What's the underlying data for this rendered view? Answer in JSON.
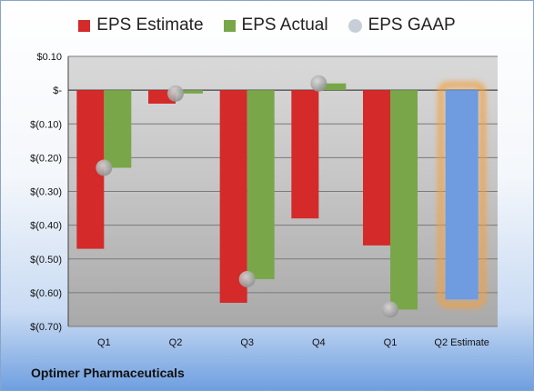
{
  "legend": {
    "estimate_label": "EPS Estimate",
    "actual_label": "EPS Actual",
    "gaap_label": "EPS GAAP"
  },
  "company": "Optimer Pharmaceuticals",
  "colors": {
    "estimate": "#d42a2a",
    "actual": "#7aa64a",
    "gaap": "#a8a8a8",
    "forecast": "#6f9be0",
    "forecast_glow": "#f2a040"
  },
  "chart_data": {
    "type": "bar",
    "categories": [
      "Q1",
      "Q2",
      "Q3",
      "Q4",
      "Q1",
      "Q2 Estimate"
    ],
    "series": [
      {
        "name": "EPS Estimate",
        "values": [
          -0.47,
          -0.04,
          -0.63,
          -0.38,
          -0.46,
          null
        ]
      },
      {
        "name": "EPS Actual",
        "values": [
          -0.23,
          -0.01,
          -0.56,
          0.02,
          -0.65,
          null
        ]
      },
      {
        "name": "EPS GAAP",
        "values": [
          -0.23,
          -0.01,
          -0.56,
          0.02,
          -0.65,
          null
        ]
      }
    ],
    "forecast": {
      "category": "Q2 Estimate",
      "value": -0.62
    },
    "ylim": [
      -0.7,
      0.1
    ],
    "yticks": [
      0.1,
      0.0,
      -0.1,
      -0.2,
      -0.3,
      -0.4,
      -0.5,
      -0.6,
      -0.7
    ],
    "ytick_labels": [
      "$0.10",
      "$-",
      "$(0.10)",
      "$(0.20)",
      "$(0.30)",
      "$(0.40)",
      "$(0.50)",
      "$(0.60)",
      "$(0.70)"
    ],
    "grid": true,
    "legend_position": "top"
  }
}
